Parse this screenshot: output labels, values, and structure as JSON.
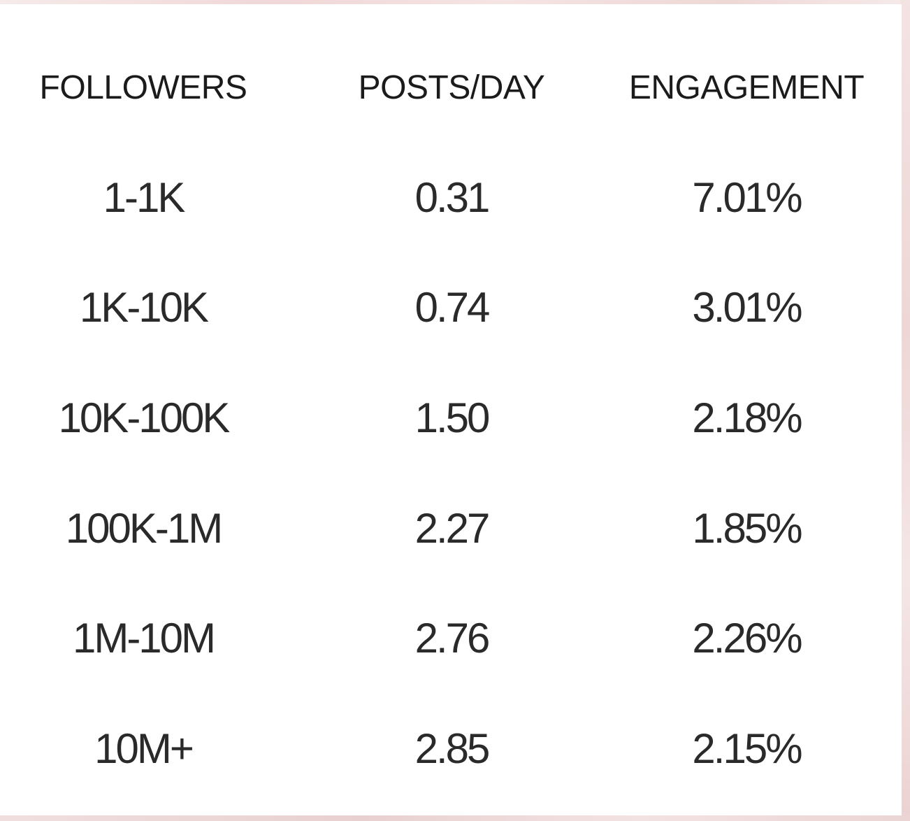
{
  "chart_data": {
    "type": "table",
    "columns": [
      "FOLLOWERS",
      "POSTS/DAY",
      "ENGAGEMENT"
    ],
    "rows": [
      [
        "1-1K",
        "0.31",
        "7.01%"
      ],
      [
        "1K-10K",
        "0.74",
        "3.01%"
      ],
      [
        "10K-100K",
        "1.50",
        "2.18%"
      ],
      [
        "100K-1M",
        "2.27",
        "1.85%"
      ],
      [
        "1M-10M",
        "2.76",
        "2.26%"
      ],
      [
        "10M+",
        "2.85",
        "2.15%"
      ]
    ]
  },
  "colors": {
    "card_background": "#ffffff",
    "text": "#1a1a1a",
    "border_pink": "#f3e3e3"
  }
}
